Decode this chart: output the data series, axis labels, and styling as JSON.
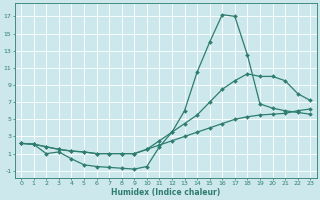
{
  "xlabel": "Humidex (Indice chaleur)",
  "xlim": [
    -0.5,
    23.5
  ],
  "ylim": [
    -1.8,
    18.5
  ],
  "xticks": [
    0,
    1,
    2,
    3,
    4,
    5,
    6,
    7,
    8,
    9,
    10,
    11,
    12,
    13,
    14,
    15,
    16,
    17,
    18,
    19,
    20,
    21,
    22,
    23
  ],
  "yticks": [
    -1,
    1,
    3,
    5,
    7,
    9,
    11,
    13,
    15,
    17
  ],
  "bg_color": "#cce8ec",
  "grid_color": "#ffffff",
  "line_color": "#2e7d6e",
  "line1_x": [
    0,
    1,
    2,
    3,
    4,
    5,
    6,
    7,
    8,
    9,
    10,
    11,
    12,
    13,
    14,
    15,
    16,
    17,
    18,
    19,
    20,
    21,
    22,
    23
  ],
  "line1_y": [
    2.2,
    2.1,
    1.0,
    1.2,
    0.4,
    -0.3,
    -0.5,
    -0.6,
    -0.7,
    -0.8,
    -0.5,
    1.8,
    3.5,
    6.0,
    10.5,
    14.0,
    17.2,
    17.0,
    12.5,
    6.8,
    6.3,
    6.0,
    5.8,
    5.6
  ],
  "line2_x": [
    0,
    1,
    2,
    3,
    4,
    5,
    6,
    7,
    8,
    9,
    10,
    11,
    12,
    13,
    14,
    15,
    16,
    17,
    18,
    19,
    20,
    21,
    22,
    23
  ],
  "line2_y": [
    2.2,
    2.1,
    1.8,
    1.5,
    1.3,
    1.2,
    1.0,
    1.0,
    1.0,
    1.0,
    1.5,
    2.5,
    3.5,
    4.5,
    5.5,
    7.0,
    8.5,
    9.5,
    10.3,
    10.0,
    10.0,
    9.5,
    8.0,
    7.2
  ],
  "line3_x": [
    0,
    1,
    2,
    3,
    4,
    5,
    6,
    7,
    8,
    9,
    10,
    11,
    12,
    13,
    14,
    15,
    16,
    17,
    18,
    19,
    20,
    21,
    22,
    23
  ],
  "line3_y": [
    2.2,
    2.1,
    1.8,
    1.5,
    1.3,
    1.2,
    1.0,
    1.0,
    1.0,
    1.0,
    1.5,
    2.0,
    2.5,
    3.0,
    3.5,
    4.0,
    4.5,
    5.0,
    5.3,
    5.5,
    5.6,
    5.7,
    6.0,
    6.2
  ]
}
